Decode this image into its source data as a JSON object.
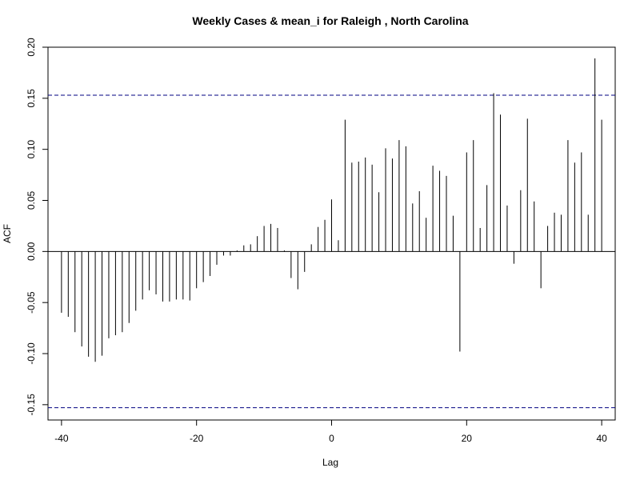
{
  "chart_data": {
    "type": "bar",
    "title": "Weekly Cases & mean_i for Raleigh , North Carolina",
    "xlabel": "Lag",
    "ylabel": "ACF",
    "xlim": [
      -42,
      42
    ],
    "ylim": [
      -0.165,
      0.2
    ],
    "x_ticks": [
      -40,
      -20,
      0,
      20,
      40
    ],
    "x_tick_labels": [
      "-40",
      "-20",
      "0",
      "20",
      "40"
    ],
    "y_ticks": [
      -0.15,
      -0.1,
      -0.05,
      0,
      0.05,
      0.1,
      0.15,
      0.2
    ],
    "y_tick_labels": [
      "-0.15",
      "-0.10",
      "-0.05",
      "0.00",
      "0.05",
      "0.10",
      "0.15",
      "0.20"
    ],
    "confidence_limits": [
      0.153,
      -0.153
    ],
    "confidence_color": "#000080",
    "bar_color": "#000000",
    "grid": false,
    "lags": [
      -40,
      -39,
      -38,
      -37,
      -36,
      -35,
      -34,
      -33,
      -32,
      -31,
      -30,
      -29,
      -28,
      -27,
      -26,
      -25,
      -24,
      -23,
      -22,
      -21,
      -20,
      -19,
      -18,
      -17,
      -16,
      -15,
      -14,
      -13,
      -12,
      -11,
      -10,
      -9,
      -8,
      -7,
      -6,
      -5,
      -4,
      -3,
      -2,
      -1,
      0,
      1,
      2,
      3,
      4,
      5,
      6,
      7,
      8,
      9,
      10,
      11,
      12,
      13,
      14,
      15,
      16,
      17,
      18,
      19,
      20,
      21,
      22,
      23,
      24,
      25,
      26,
      27,
      28,
      29,
      30,
      31,
      32,
      33,
      34,
      35,
      36,
      37,
      38,
      39,
      40
    ],
    "values": [
      -0.06,
      -0.064,
      -0.079,
      -0.093,
      -0.103,
      -0.108,
      -0.102,
      -0.085,
      -0.082,
      -0.079,
      -0.07,
      -0.058,
      -0.047,
      -0.038,
      -0.042,
      -0.049,
      -0.049,
      -0.047,
      -0.047,
      -0.048,
      -0.036,
      -0.03,
      -0.024,
      -0.013,
      -0.004,
      -0.004,
      0.001,
      0.006,
      0.007,
      0.015,
      0.025,
      0.027,
      0.023,
      0.001,
      -0.026,
      -0.037,
      -0.02,
      0.007,
      0.024,
      0.031,
      0.051,
      0.011,
      0.129,
      0.087,
      0.088,
      0.092,
      0.085,
      0.058,
      0.101,
      0.091,
      0.109,
      0.103,
      0.047,
      0.059,
      0.033,
      0.084,
      0.079,
      0.074,
      0.035,
      -0.098,
      0.097,
      0.109,
      0.023,
      0.065,
      0.155,
      0.134,
      0.045,
      -0.012,
      0.06,
      0.13,
      0.049,
      -0.036,
      0.025,
      0.038,
      0.036,
      0.109,
      0.087,
      0.097,
      0.036,
      0.189,
      0.129
    ]
  }
}
